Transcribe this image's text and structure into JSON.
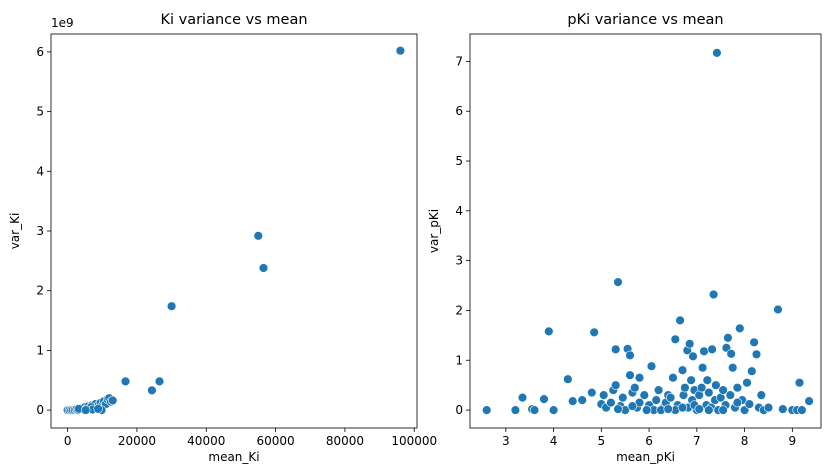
{
  "chart_data": [
    {
      "type": "scatter",
      "title": "Ki variance vs mean",
      "xlabel": "mean_Ki",
      "ylabel": "var_Ki",
      "y_multiplier_label": "1e9",
      "xlim": [
        -4800,
        100800
      ],
      "ylim": [
        -0.3,
        6.3
      ],
      "xticks": [
        0,
        20000,
        40000,
        60000,
        80000,
        100000
      ],
      "xtick_labels": [
        "0",
        "20000",
        "40000",
        "60000",
        "80000",
        "100000"
      ],
      "yticks": [
        0,
        1,
        2,
        3,
        4,
        5,
        6
      ],
      "ytick_labels": [
        "0",
        "1",
        "2",
        "3",
        "4",
        "5",
        "6"
      ],
      "grid": false,
      "color": "#1f77b4",
      "points": [
        [
          0,
          0.0
        ],
        [
          500,
          0.0
        ],
        [
          1000,
          0.0
        ],
        [
          1500,
          0.0
        ],
        [
          2000,
          0.0
        ],
        [
          2500,
          0.01
        ],
        [
          3000,
          0.0
        ],
        [
          3500,
          0.02
        ],
        [
          4000,
          0.03
        ],
        [
          4500,
          0.01
        ],
        [
          5000,
          0.05
        ],
        [
          5500,
          0.03
        ],
        [
          6000,
          0.06
        ],
        [
          6500,
          0.02
        ],
        [
          7000,
          0.08
        ],
        [
          7500,
          0.05
        ],
        [
          8000,
          0.1
        ],
        [
          8500,
          0.04
        ],
        [
          9000,
          0.09
        ],
        [
          9500,
          0.12
        ],
        [
          10000,
          0.07
        ],
        [
          10500,
          0.15
        ],
        [
          11000,
          0.1
        ],
        [
          11500,
          0.18
        ],
        [
          12000,
          0.2
        ],
        [
          12500,
          0.14
        ],
        [
          13000,
          0.16
        ],
        [
          3200,
          0.02
        ],
        [
          6800,
          0.05
        ],
        [
          9800,
          0.0
        ],
        [
          7200,
          0.01
        ],
        [
          5200,
          0.0
        ],
        [
          8800,
          0.02
        ],
        [
          16700,
          0.48
        ],
        [
          24300,
          0.33
        ],
        [
          26500,
          0.48
        ],
        [
          30000,
          1.74
        ],
        [
          55000,
          2.92
        ],
        [
          56500,
          2.38
        ],
        [
          96000,
          6.02
        ]
      ]
    },
    {
      "type": "scatter",
      "title": "pKi variance vs mean",
      "xlabel": "mean_pKi",
      "ylabel": "var_pKi",
      "xlim": [
        2.25,
        9.6
      ],
      "ylim": [
        -0.36,
        7.55
      ],
      "xticks": [
        3,
        4,
        5,
        6,
        7,
        8,
        9
      ],
      "xtick_labels": [
        "3",
        "4",
        "5",
        "6",
        "7",
        "8",
        "9"
      ],
      "yticks": [
        0,
        1,
        2,
        3,
        4,
        5,
        6,
        7
      ],
      "ytick_labels": [
        "0",
        "1",
        "2",
        "3",
        "4",
        "5",
        "6",
        "7"
      ],
      "grid": false,
      "color": "#1f77b4",
      "points": [
        [
          2.6,
          0.0
        ],
        [
          3.2,
          0.0
        ],
        [
          3.35,
          0.25
        ],
        [
          3.55,
          0.02
        ],
        [
          3.6,
          0.0
        ],
        [
          3.8,
          0.22
        ],
        [
          3.9,
          1.58
        ],
        [
          4.0,
          0.0
        ],
        [
          4.3,
          0.62
        ],
        [
          4.4,
          0.18
        ],
        [
          4.6,
          0.2
        ],
        [
          4.8,
          0.35
        ],
        [
          4.85,
          1.56
        ],
        [
          5.0,
          0.12
        ],
        [
          5.05,
          0.3
        ],
        [
          5.1,
          0.05
        ],
        [
          5.2,
          0.15
        ],
        [
          5.25,
          0.4
        ],
        [
          5.3,
          0.5
        ],
        [
          5.3,
          1.22
        ],
        [
          5.35,
          2.57
        ],
        [
          5.4,
          0.08
        ],
        [
          5.45,
          0.25
        ],
        [
          5.5,
          0.0
        ],
        [
          5.55,
          1.23
        ],
        [
          5.6,
          0.7
        ],
        [
          5.6,
          1.1
        ],
        [
          5.65,
          0.35
        ],
        [
          5.7,
          0.45
        ],
        [
          5.75,
          0.05
        ],
        [
          5.8,
          0.15
        ],
        [
          5.8,
          0.65
        ],
        [
          5.9,
          0.3
        ],
        [
          5.95,
          0.02
        ],
        [
          6.0,
          0.1
        ],
        [
          6.05,
          0.88
        ],
        [
          6.1,
          0.0
        ],
        [
          6.15,
          0.2
        ],
        [
          6.2,
          0.4
        ],
        [
          6.3,
          0.05
        ],
        [
          6.35,
          0.15
        ],
        [
          6.4,
          0.3
        ],
        [
          6.45,
          0.25
        ],
        [
          6.5,
          0.65
        ],
        [
          6.55,
          1.42
        ],
        [
          6.6,
          0.1
        ],
        [
          6.65,
          1.8
        ],
        [
          6.7,
          0.8
        ],
        [
          6.72,
          0.3
        ],
        [
          6.75,
          0.45
        ],
        [
          6.8,
          1.2
        ],
        [
          6.82,
          0.05
        ],
        [
          6.85,
          1.33
        ],
        [
          6.88,
          0.6
        ],
        [
          6.9,
          0.2
        ],
        [
          6.92,
          1.08
        ],
        [
          6.95,
          0.4
        ],
        [
          7.0,
          0.0
        ],
        [
          7.05,
          0.3
        ],
        [
          7.1,
          0.45
        ],
        [
          7.12,
          0.85
        ],
        [
          7.15,
          1.18
        ],
        [
          7.2,
          0.1
        ],
        [
          7.22,
          0.6
        ],
        [
          7.25,
          0.35
        ],
        [
          7.3,
          0.05
        ],
        [
          7.32,
          1.22
        ],
        [
          7.35,
          2.32
        ],
        [
          7.38,
          0.2
        ],
        [
          7.4,
          0.5
        ],
        [
          7.42,
          7.17
        ],
        [
          7.45,
          0.0
        ],
        [
          7.5,
          0.25
        ],
        [
          7.55,
          0.4
        ],
        [
          7.6,
          0.1
        ],
        [
          7.62,
          1.25
        ],
        [
          7.65,
          1.45
        ],
        [
          7.7,
          0.3
        ],
        [
          7.72,
          1.13
        ],
        [
          7.75,
          0.85
        ],
        [
          7.8,
          0.05
        ],
        [
          7.85,
          0.45
        ],
        [
          7.9,
          1.64
        ],
        [
          7.95,
          0.2
        ],
        [
          8.0,
          0.0
        ],
        [
          8.05,
          0.55
        ],
        [
          8.1,
          0.12
        ],
        [
          8.15,
          0.78
        ],
        [
          8.2,
          1.36
        ],
        [
          8.25,
          1.12
        ],
        [
          8.3,
          0.05
        ],
        [
          8.35,
          0.3
        ],
        [
          8.4,
          0.0
        ],
        [
          8.5,
          0.05
        ],
        [
          8.7,
          2.02
        ],
        [
          8.8,
          0.02
        ],
        [
          9.0,
          0.0
        ],
        [
          9.1,
          0.0
        ],
        [
          9.15,
          0.55
        ],
        [
          9.2,
          0.0
        ],
        [
          9.35,
          0.18
        ],
        [
          6.25,
          0.0
        ],
        [
          6.55,
          0.0
        ],
        [
          6.95,
          0.1
        ],
        [
          7.25,
          0.0
        ],
        [
          7.55,
          0.0
        ],
        [
          7.85,
          0.15
        ],
        [
          5.35,
          0.02
        ],
        [
          5.65,
          0.08
        ],
        [
          5.95,
          0.0
        ],
        [
          6.4,
          0.02
        ],
        [
          6.7,
          0.05
        ],
        [
          7.05,
          0.02
        ]
      ]
    }
  ]
}
